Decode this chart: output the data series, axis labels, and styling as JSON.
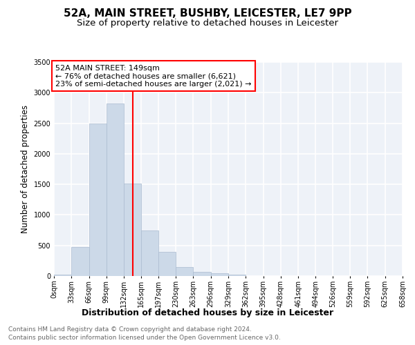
{
  "title": "52A, MAIN STREET, BUSHBY, LEICESTER, LE7 9PP",
  "subtitle": "Size of property relative to detached houses in Leicester",
  "xlabel": "Distribution of detached houses by size in Leicester",
  "ylabel": "Number of detached properties",
  "bar_color": "#ccd9e8",
  "bar_edge_color": "#aabbd0",
  "background_color": "#eef2f8",
  "grid_color": "#ffffff",
  "bin_edges": [
    0,
    33,
    66,
    99,
    132,
    165,
    197,
    230,
    263,
    296,
    329,
    362,
    395,
    428,
    461,
    494,
    526,
    559,
    592,
    625,
    658
  ],
  "bar_heights": [
    20,
    470,
    2500,
    2820,
    1510,
    750,
    390,
    150,
    65,
    50,
    20,
    5,
    0,
    0,
    0,
    0,
    0,
    0,
    0,
    0
  ],
  "x_tick_labels": [
    "0sqm",
    "33sqm",
    "66sqm",
    "99sqm",
    "132sqm",
    "165sqm",
    "197sqm",
    "230sqm",
    "263sqm",
    "296sqm",
    "329sqm",
    "362sqm",
    "395sqm",
    "428sqm",
    "461sqm",
    "494sqm",
    "526sqm",
    "559sqm",
    "592sqm",
    "625sqm",
    "658sqm"
  ],
  "ylim": [
    0,
    3500
  ],
  "yticks": [
    0,
    500,
    1000,
    1500,
    2000,
    2500,
    3000,
    3500
  ],
  "red_line_x": 149,
  "annotation_line1": "52A MAIN STREET: 149sqm",
  "annotation_line2": "← 76% of detached houses are smaller (6,621)",
  "annotation_line3": "23% of semi-detached houses are larger (2,021) →",
  "footer_line1": "Contains HM Land Registry data © Crown copyright and database right 2024.",
  "footer_line2": "Contains public sector information licensed under the Open Government Licence v3.0.",
  "title_fontsize": 11,
  "subtitle_fontsize": 9.5,
  "annotation_fontsize": 8,
  "axis_label_fontsize": 9,
  "ylabel_fontsize": 8.5,
  "tick_fontsize": 7,
  "footer_fontsize": 6.5
}
